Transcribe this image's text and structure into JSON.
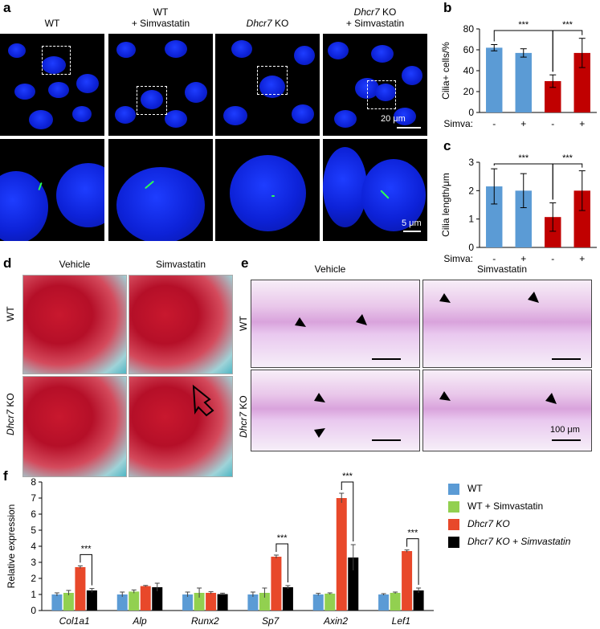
{
  "panel_a": {
    "letter": "a",
    "columns": [
      {
        "line1": "WT",
        "line2": "",
        "italic": false
      },
      {
        "line1": "WT",
        "line2": "+ Simvastatin",
        "italic": false
      },
      {
        "line1": "Dhcr7",
        "line2": "",
        "suffix": " KO",
        "italic": true
      },
      {
        "line1": "Dhcr7",
        "line2": "+ Simvastatin",
        "suffix": " KO",
        "italic": true
      }
    ],
    "scale_top": "20 μm",
    "scale_bottom": "5 μm"
  },
  "panel_d": {
    "letter": "d",
    "col_vehicle": "Vehicle",
    "col_simva": "Simvastatin",
    "row_wt": "WT",
    "row_ko_gene": "Dhcr7",
    "row_ko_suffix": " KO"
  },
  "panel_e": {
    "letter": "e",
    "col_vehicle": "Vehicle",
    "col_simva": "Simvastatin",
    "row_wt": "WT",
    "row_ko_gene": "Dhcr7",
    "row_ko_suffix": " KO",
    "scale": "100 μm"
  },
  "colors": {
    "blue": "#5b9bd5",
    "red": "#c00000",
    "green": "#92d050",
    "orange": "#e8482a",
    "black": "#000000"
  },
  "chart_data": [
    {
      "panel": "b",
      "type": "bar",
      "ylabel": "Cilia+ cells/%",
      "ylim": [
        0,
        80
      ],
      "yticks": [
        0,
        20,
        40,
        60,
        80
      ],
      "xlabel": "Simva:",
      "categories": [
        "-",
        "+",
        "-",
        "+"
      ],
      "values": [
        62,
        57,
        30,
        57
      ],
      "errors": [
        3,
        4,
        6,
        14
      ],
      "bar_colors": [
        "blue",
        "blue",
        "red",
        "red"
      ],
      "significance": [
        {
          "from": 0,
          "to": 2,
          "label": "***"
        },
        {
          "from": 2,
          "to": 3,
          "label": "***"
        }
      ]
    },
    {
      "panel": "c",
      "type": "bar",
      "ylabel": "Cilia length/μm",
      "ylim": [
        0,
        3
      ],
      "yticks": [
        0,
        1,
        2,
        3
      ],
      "xlabel": "Simva:",
      "categories": [
        "-",
        "+",
        "-",
        "+"
      ],
      "values": [
        2.15,
        2.0,
        1.07,
        2.0
      ],
      "errors": [
        0.62,
        0.6,
        0.5,
        0.7
      ],
      "bar_colors": [
        "blue",
        "blue",
        "red",
        "red"
      ],
      "significance": [
        {
          "from": 0,
          "to": 2,
          "label": "***"
        },
        {
          "from": 2,
          "to": 3,
          "label": "***"
        }
      ]
    },
    {
      "panel": "f",
      "type": "bar",
      "ylabel": "Relative expression",
      "ylim": [
        0,
        8
      ],
      "yticks": [
        0,
        1,
        2,
        3,
        4,
        5,
        6,
        7,
        8
      ],
      "categories": [
        "Col1a1",
        "Alp",
        "Runx2",
        "Sp7",
        "Axin2",
        "Lef1"
      ],
      "series": [
        {
          "name": "WT",
          "color": "blue",
          "values": [
            1.0,
            1.0,
            1.0,
            1.0,
            1.0,
            1.0
          ],
          "errors": [
            0.1,
            0.15,
            0.15,
            0.15,
            0.07,
            0.05
          ]
        },
        {
          "name": "WT + Simvastatin",
          "color": "green",
          "values": [
            1.1,
            1.18,
            1.1,
            1.1,
            1.05,
            1.1
          ],
          "errors": [
            0.15,
            0.1,
            0.3,
            0.3,
            0.05,
            0.05
          ]
        },
        {
          "name": "Dhcr7 KO",
          "color": "orange",
          "values": [
            2.7,
            1.52,
            1.1,
            3.35,
            7.0,
            3.7
          ],
          "errors": [
            0.08,
            0.04,
            0.07,
            0.1,
            0.3,
            0.07
          ]
        },
        {
          "name": "Dhcr7 KO + Simvastatin",
          "color": "black",
          "values": [
            1.25,
            1.45,
            1.02,
            1.45,
            3.3,
            1.25
          ],
          "errors": [
            0.12,
            0.25,
            0.06,
            0.1,
            0.8,
            0.15
          ]
        }
      ],
      "significance": [
        {
          "category": 0,
          "label": "***"
        },
        {
          "category": 3,
          "label": "***"
        },
        {
          "category": 4,
          "label": "***"
        },
        {
          "category": 5,
          "label": "***"
        }
      ],
      "legend": [
        "WT",
        "WT + Simvastatin",
        "Dhcr7 KO",
        "Dhcr7 KO + Simvastatin"
      ]
    }
  ]
}
